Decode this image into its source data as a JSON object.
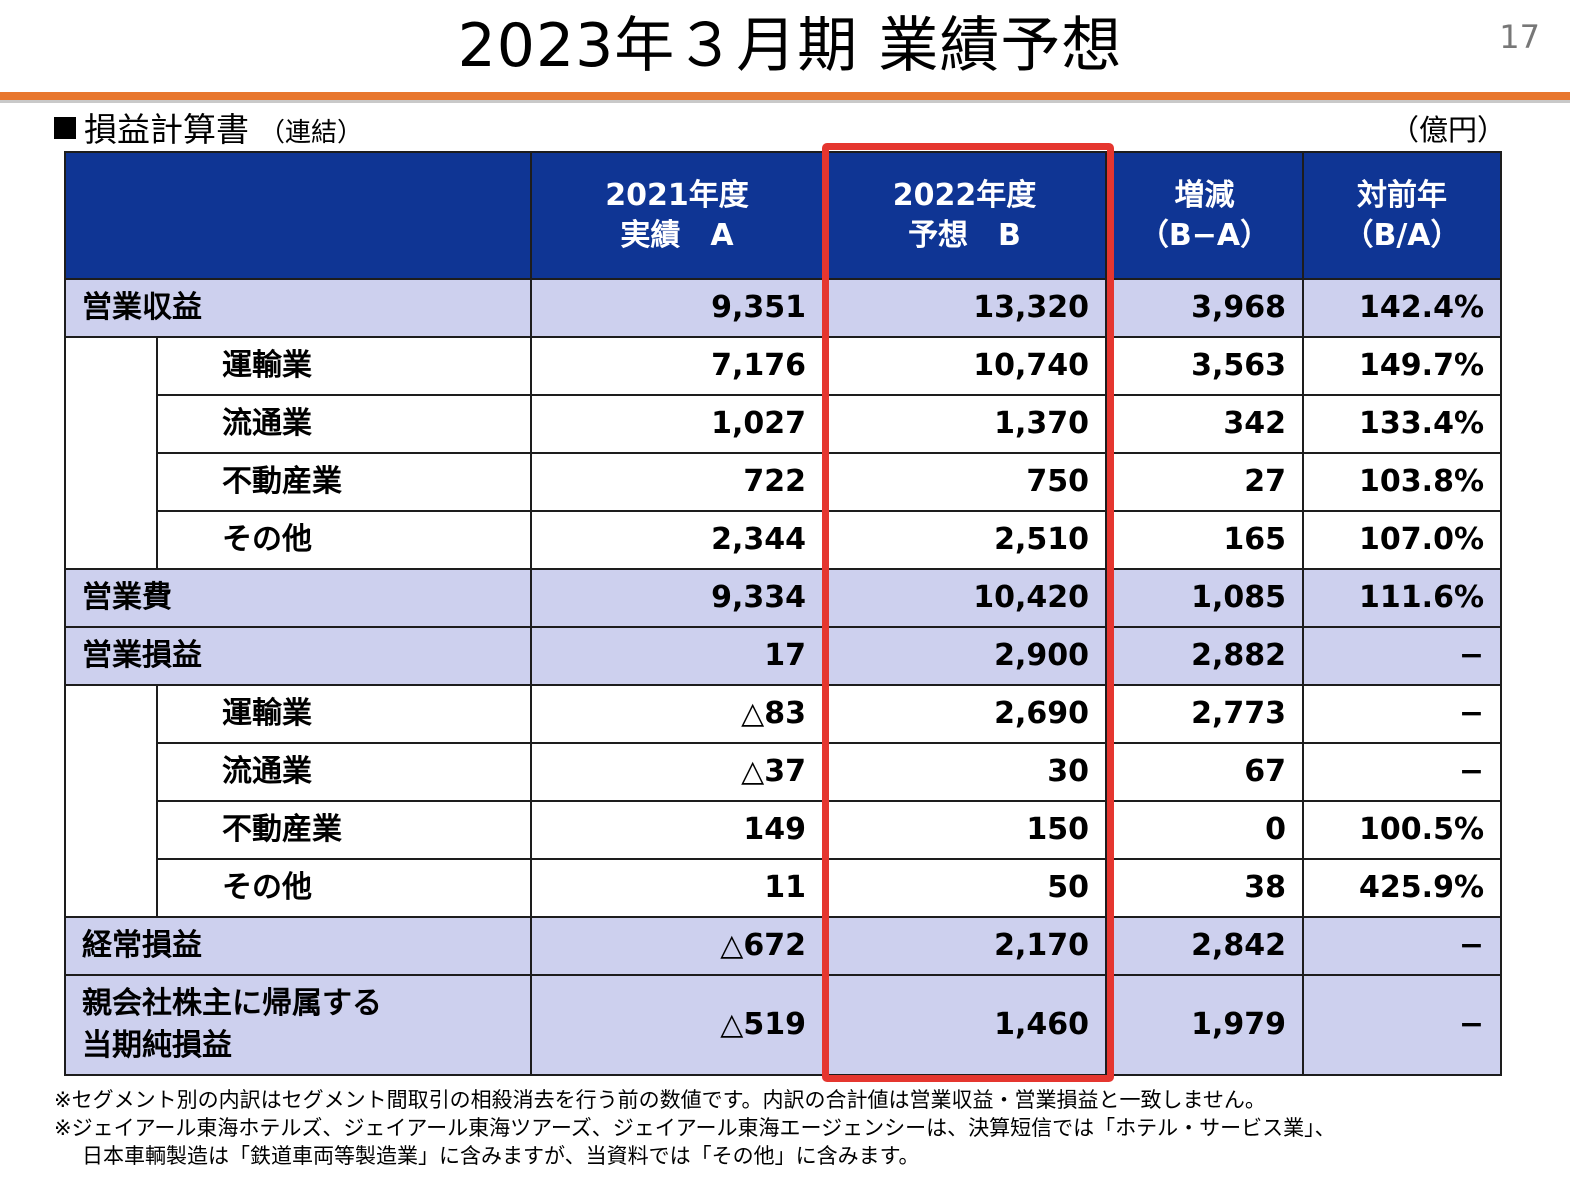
{
  "page": {
    "title": "2023年３月期 業績予想",
    "number": "17"
  },
  "section": {
    "marker": "■",
    "heading": "損益計算書",
    "subheading": "（連結）",
    "unit": "（億円）"
  },
  "table": {
    "headers": [
      "",
      "2021年度\n実績　A",
      "2022年度\n予想　B",
      "増減\n（B−A）",
      "対前年\n（B/A）"
    ],
    "rows": [
      {
        "label": "営業収益",
        "a": "9,351",
        "b": "13,320",
        "diff": "3,968",
        "ratio": "142.4%"
      },
      {
        "label": "運輸業",
        "a": "7,176",
        "b": "10,740",
        "diff": "3,563",
        "ratio": "149.7%"
      },
      {
        "label": "流通業",
        "a": "1,027",
        "b": "1,370",
        "diff": "342",
        "ratio": "133.4%"
      },
      {
        "label": "不動産業",
        "a": "722",
        "b": "750",
        "diff": "27",
        "ratio": "103.8%"
      },
      {
        "label": "その他",
        "a": "2,344",
        "b": "2,510",
        "diff": "165",
        "ratio": "107.0%"
      },
      {
        "label": "営業費",
        "a": "9,334",
        "b": "10,420",
        "diff": "1,085",
        "ratio": "111.6%"
      },
      {
        "label": "営業損益",
        "a": "17",
        "b": "2,900",
        "diff": "2,882",
        "ratio": "−"
      },
      {
        "label": "運輸業",
        "a": "△83",
        "b": "2,690",
        "diff": "2,773",
        "ratio": "−"
      },
      {
        "label": "流通業",
        "a": "△37",
        "b": "30",
        "diff": "67",
        "ratio": "−"
      },
      {
        "label": "不動産業",
        "a": "149",
        "b": "150",
        "diff": "0",
        "ratio": "100.5%"
      },
      {
        "label": "その他",
        "a": "11",
        "b": "50",
        "diff": "38",
        "ratio": "425.9%"
      },
      {
        "label": "経常損益",
        "a": "△672",
        "b": "2,170",
        "diff": "2,842",
        "ratio": "−"
      },
      {
        "label": "親会社株主に帰属する\n当期純損益",
        "a": "△519",
        "b": "1,460",
        "diff": "1,979",
        "ratio": "−"
      }
    ]
  },
  "notes": [
    "※セグメント別の内訳はセグメント間取引の相殺消去を行う前の数値です。内訳の合計値は営業収益・営業損益と一致しません。",
    "※ジェイアール東海ホテルズ、ジェイアール東海ツアーズ、ジェイアール東海エージェンシーは、決算短信では「ホテル・サービス業」、",
    "日本車輌製造は「鉄道車両等製造業」に含みますが、当資料では「その他」に含みます。"
  ],
  "colors": {
    "accent_bar": "#e8772e",
    "header_fill": "#0f3594",
    "total_row_fill": "#cdd0ee",
    "highlight_border": "#e5362f"
  }
}
